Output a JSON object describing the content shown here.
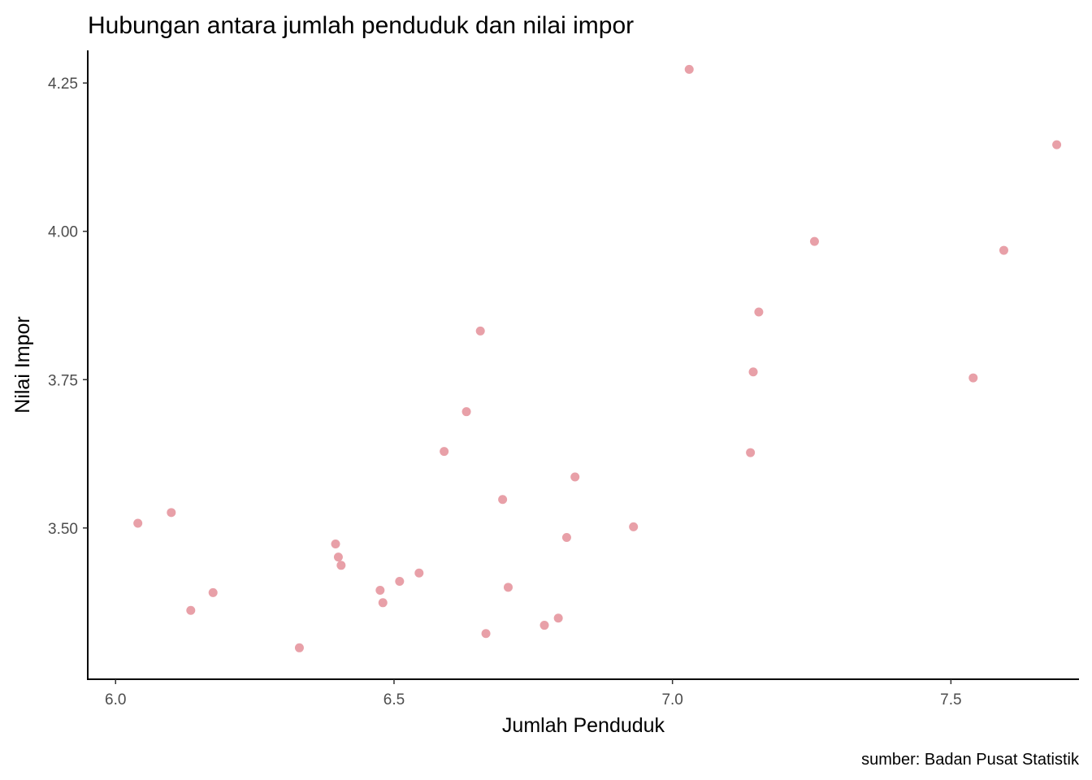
{
  "chart_data": {
    "type": "scatter",
    "title": "Hubungan antara jumlah penduduk dan nilai impor",
    "xlabel": "Jumlah Penduduk",
    "ylabel": "Nilai Impor",
    "caption": "sumber: Badan Pusat Statistik",
    "xlim": [
      5.95,
      7.73
    ],
    "ylim": [
      3.245,
      4.305
    ],
    "x_ticks": [
      6.0,
      6.5,
      7.0,
      7.5
    ],
    "x_tick_labels": [
      "6.0",
      "6.5",
      "7.0",
      "7.5"
    ],
    "y_ticks": [
      3.5,
      3.75,
      4.0,
      4.25
    ],
    "y_tick_labels": [
      "3.50",
      "3.75",
      "4.00",
      "4.25"
    ],
    "grid": false,
    "point_color": "#E8A0A8",
    "points": [
      {
        "x": 6.04,
        "y": 3.508
      },
      {
        "x": 6.1,
        "y": 3.526
      },
      {
        "x": 6.135,
        "y": 3.361
      },
      {
        "x": 6.175,
        "y": 3.391
      },
      {
        "x": 6.33,
        "y": 3.298
      },
      {
        "x": 6.395,
        "y": 3.473
      },
      {
        "x": 6.4,
        "y": 3.451
      },
      {
        "x": 6.405,
        "y": 3.437
      },
      {
        "x": 6.475,
        "y": 3.395
      },
      {
        "x": 6.48,
        "y": 3.374
      },
      {
        "x": 6.51,
        "y": 3.41
      },
      {
        "x": 6.545,
        "y": 3.424
      },
      {
        "x": 6.59,
        "y": 3.629
      },
      {
        "x": 6.63,
        "y": 3.696
      },
      {
        "x": 6.655,
        "y": 3.832
      },
      {
        "x": 6.665,
        "y": 3.322
      },
      {
        "x": 6.695,
        "y": 3.548
      },
      {
        "x": 6.705,
        "y": 3.4
      },
      {
        "x": 6.77,
        "y": 3.336
      },
      {
        "x": 6.795,
        "y": 3.348
      },
      {
        "x": 6.81,
        "y": 3.484
      },
      {
        "x": 6.825,
        "y": 3.586
      },
      {
        "x": 6.93,
        "y": 3.502
      },
      {
        "x": 7.03,
        "y": 4.273
      },
      {
        "x": 7.14,
        "y": 3.627
      },
      {
        "x": 7.145,
        "y": 3.763
      },
      {
        "x": 7.155,
        "y": 3.864
      },
      {
        "x": 7.255,
        "y": 3.983
      },
      {
        "x": 7.54,
        "y": 3.753
      },
      {
        "x": 7.595,
        "y": 3.968
      },
      {
        "x": 7.69,
        "y": 4.146
      }
    ]
  }
}
